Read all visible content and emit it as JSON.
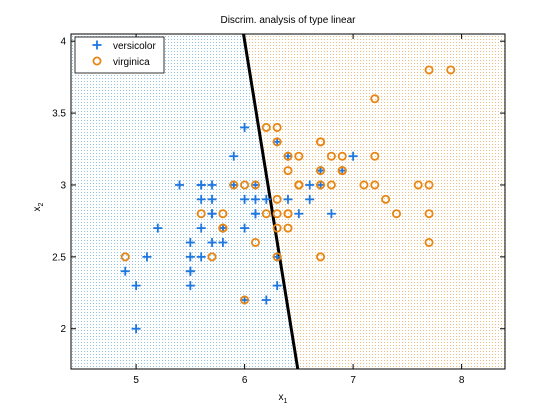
{
  "chart_data": {
    "type": "scatter",
    "title": "Discrim. analysis of type linear",
    "xlabel": "x",
    "xlabel_sub": "1",
    "ylabel": "x",
    "ylabel_sub": "2",
    "xlim": [
      4.4,
      8.4
    ],
    "ylim": [
      1.72,
      4.05
    ],
    "xticks": [
      5,
      6,
      7,
      8
    ],
    "yticks": [
      2,
      2.5,
      3,
      3.5,
      4
    ],
    "xtick_labels": [
      "5",
      "6",
      "7",
      "8"
    ],
    "ytick_labels": [
      "2",
      "2.5",
      "3",
      "3.5",
      "4"
    ],
    "grid": false,
    "legend_position": "top-left",
    "regions": [
      {
        "name": "versicolor",
        "color": "#3d8fc4",
        "background": "#ffffff",
        "side": "left"
      },
      {
        "name": "virginica",
        "color": "#e08a20",
        "background": "#ffffff",
        "side": "right"
      }
    ],
    "boundary": {
      "points": [
        [
          5.99,
          4.05
        ],
        [
          6.49,
          1.72
        ]
      ],
      "color": "#000000"
    },
    "series": [
      {
        "name": "versicolor",
        "marker": "plus",
        "color": "#1f77e0",
        "points": [
          [
            7.0,
            3.2
          ],
          [
            6.4,
            3.2
          ],
          [
            6.9,
            3.1
          ],
          [
            5.5,
            2.3
          ],
          [
            6.5,
            2.8
          ],
          [
            5.7,
            2.8
          ],
          [
            6.3,
            3.3
          ],
          [
            4.9,
            2.4
          ],
          [
            6.6,
            2.9
          ],
          [
            5.2,
            2.7
          ],
          [
            5.0,
            2.0
          ],
          [
            5.9,
            3.0
          ],
          [
            6.0,
            2.2
          ],
          [
            6.1,
            2.9
          ],
          [
            5.6,
            2.9
          ],
          [
            6.7,
            3.1
          ],
          [
            5.6,
            3.0
          ],
          [
            5.8,
            2.7
          ],
          [
            6.2,
            2.2
          ],
          [
            5.6,
            2.5
          ],
          [
            5.9,
            3.2
          ],
          [
            6.1,
            2.8
          ],
          [
            6.3,
            2.5
          ],
          [
            6.1,
            2.8
          ],
          [
            6.4,
            2.9
          ],
          [
            6.6,
            3.0
          ],
          [
            6.8,
            2.8
          ],
          [
            6.7,
            3.0
          ],
          [
            6.0,
            2.9
          ],
          [
            5.7,
            2.6
          ],
          [
            5.5,
            2.4
          ],
          [
            5.5,
            2.4
          ],
          [
            5.8,
            2.7
          ],
          [
            6.0,
            2.7
          ],
          [
            5.4,
            3.0
          ],
          [
            6.0,
            3.4
          ],
          [
            6.7,
            3.1
          ],
          [
            6.3,
            2.3
          ],
          [
            5.6,
            3.0
          ],
          [
            5.5,
            2.5
          ],
          [
            5.5,
            2.6
          ],
          [
            6.1,
            3.0
          ],
          [
            5.8,
            2.6
          ],
          [
            5.0,
            2.3
          ],
          [
            5.6,
            2.7
          ],
          [
            5.7,
            3.0
          ],
          [
            5.7,
            2.9
          ],
          [
            6.2,
            2.9
          ],
          [
            5.1,
            2.5
          ],
          [
            5.7,
            2.8
          ]
        ]
      },
      {
        "name": "virginica",
        "marker": "circle",
        "color": "#e88614",
        "points": [
          [
            6.3,
            3.3
          ],
          [
            5.8,
            2.7
          ],
          [
            7.1,
            3.0
          ],
          [
            6.3,
            2.9
          ],
          [
            6.5,
            3.0
          ],
          [
            7.6,
            3.0
          ],
          [
            4.9,
            2.5
          ],
          [
            7.3,
            2.9
          ],
          [
            6.7,
            2.5
          ],
          [
            7.2,
            3.6
          ],
          [
            6.5,
            3.2
          ],
          [
            6.4,
            2.7
          ],
          [
            6.8,
            3.0
          ],
          [
            5.7,
            2.5
          ],
          [
            5.8,
            2.8
          ],
          [
            6.4,
            3.2
          ],
          [
            6.5,
            3.0
          ],
          [
            7.7,
            3.8
          ],
          [
            7.7,
            2.6
          ],
          [
            6.0,
            2.2
          ],
          [
            6.9,
            3.2
          ],
          [
            5.6,
            2.8
          ],
          [
            7.7,
            2.8
          ],
          [
            6.3,
            2.7
          ],
          [
            6.7,
            3.3
          ],
          [
            7.2,
            3.2
          ],
          [
            6.2,
            2.8
          ],
          [
            6.1,
            3.0
          ],
          [
            6.4,
            2.8
          ],
          [
            7.2,
            3.0
          ],
          [
            7.4,
            2.8
          ],
          [
            7.9,
            3.8
          ],
          [
            6.4,
            2.8
          ],
          [
            6.3,
            2.8
          ],
          [
            6.1,
            2.6
          ],
          [
            7.7,
            3.0
          ],
          [
            6.3,
            3.4
          ],
          [
            6.4,
            3.1
          ],
          [
            6.0,
            3.0
          ],
          [
            6.9,
            3.1
          ],
          [
            6.7,
            3.1
          ],
          [
            6.9,
            3.1
          ],
          [
            5.8,
            2.7
          ],
          [
            6.8,
            3.2
          ],
          [
            6.7,
            3.3
          ],
          [
            6.7,
            3.0
          ],
          [
            6.3,
            2.5
          ],
          [
            6.5,
            3.0
          ],
          [
            6.2,
            3.4
          ],
          [
            5.9,
            3.0
          ]
        ]
      }
    ]
  }
}
